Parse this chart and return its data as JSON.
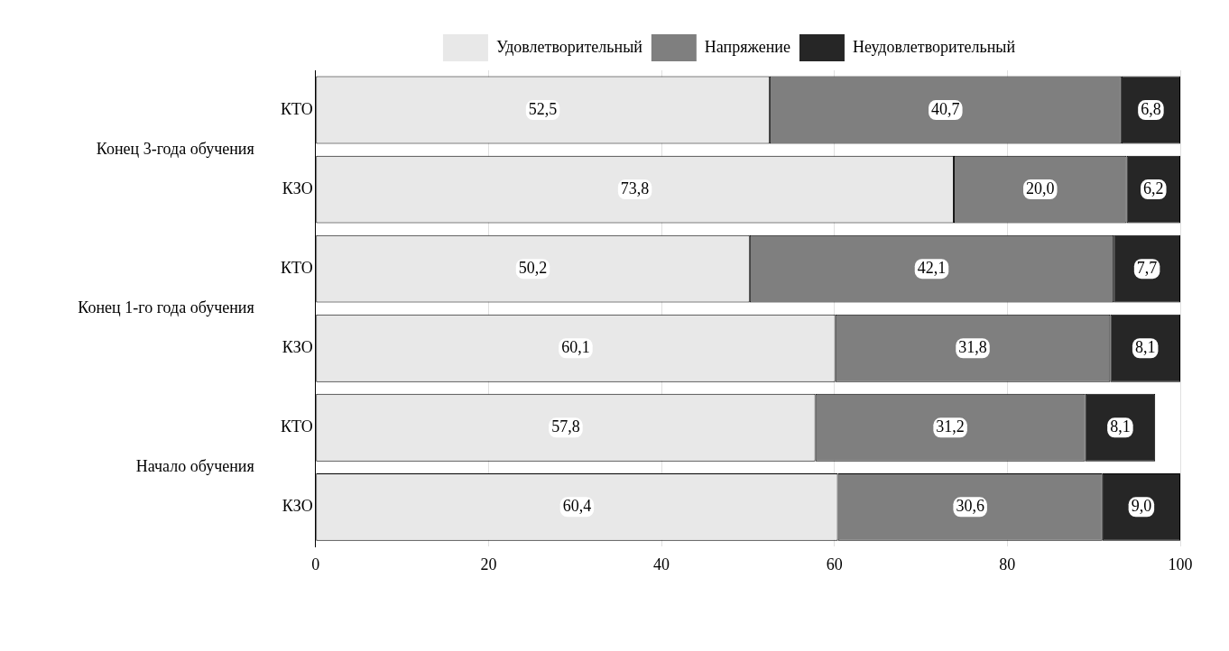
{
  "chart_data": {
    "type": "bar",
    "orientation": "horizontal",
    "stacked": true,
    "categories": [
      "КТО",
      "КЗО",
      "КТО",
      "КЗО",
      "КТО",
      "КЗО"
    ],
    "annotations": [
      "Конец 3-года обучения",
      "Конец 1-го года обучения",
      "Начало обучения"
    ],
    "series": [
      {
        "name": "Удовлетворительный",
        "color": "#e8e8e8",
        "values": [
          52.5,
          73.8,
          50.2,
          60.1,
          57.8,
          60.4
        ],
        "value_labels": [
          "52,5",
          "73,8",
          "50,2",
          "60,1",
          "57,8",
          "60,4"
        ]
      },
      {
        "name": "Напряжение",
        "color": "#7f7f7f",
        "values": [
          40.7,
          20.0,
          42.1,
          31.8,
          31.2,
          30.6
        ],
        "value_labels": [
          "40,7",
          "20,0",
          "42,1",
          "31,8",
          "31,2",
          "30,6"
        ]
      },
      {
        "name": "Неудовлетворительный",
        "color": "#262626",
        "values": [
          6.8,
          6.2,
          7.7,
          8.1,
          8.1,
          9.0
        ],
        "value_labels": [
          "6,8",
          "6,2",
          "7,7",
          "8,1",
          "8,1",
          "9,0"
        ]
      }
    ],
    "xlim": [
      0,
      100
    ],
    "xticks": [
      0,
      20,
      40,
      60,
      80,
      100
    ],
    "grid": "x",
    "legend": "top"
  }
}
